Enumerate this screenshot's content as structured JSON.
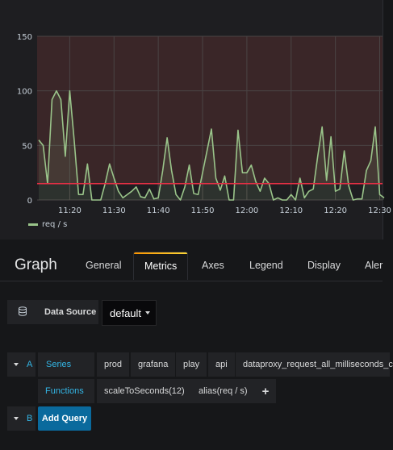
{
  "chart_data": {
    "type": "line",
    "x": [
      "11:13",
      "11:14",
      "11:15",
      "11:16",
      "11:17",
      "11:18",
      "11:19",
      "11:20",
      "11:21",
      "11:22",
      "11:23",
      "11:24",
      "11:25",
      "11:26",
      "11:27",
      "11:28",
      "11:29",
      "11:30",
      "11:31",
      "11:32",
      "11:33",
      "11:34",
      "11:35",
      "11:36",
      "11:37",
      "11:38",
      "11:39",
      "11:40",
      "11:41",
      "11:42",
      "11:43",
      "11:44",
      "11:45",
      "11:46",
      "11:47",
      "11:48",
      "11:49",
      "11:50",
      "11:51",
      "11:52",
      "11:53",
      "11:54",
      "11:55",
      "11:56",
      "11:57",
      "11:58",
      "11:59",
      "12:00",
      "12:01",
      "12:02",
      "12:03",
      "12:04",
      "12:05",
      "12:06",
      "12:07",
      "12:08",
      "12:09",
      "12:10",
      "12:11",
      "12:12",
      "12:13",
      "12:14",
      "12:15",
      "12:16",
      "12:17",
      "12:18",
      "12:19",
      "12:20",
      "12:21",
      "12:22",
      "12:23",
      "12:24",
      "12:25",
      "12:26",
      "12:27",
      "12:28",
      "12:29",
      "12:30",
      "12:31"
    ],
    "values": [
      55,
      50,
      15,
      92,
      100,
      92,
      40,
      100,
      55,
      5,
      5,
      33,
      0,
      0,
      0,
      15,
      33,
      20,
      8,
      2,
      5,
      8,
      12,
      3,
      2,
      10,
      1,
      2,
      27,
      57,
      27,
      5,
      0,
      12,
      32,
      6,
      5,
      25,
      45,
      65,
      20,
      9,
      22,
      0,
      0,
      64,
      25,
      25,
      32,
      17,
      8,
      20,
      15,
      0,
      2,
      0,
      0,
      5,
      0,
      20,
      2,
      8,
      10,
      40,
      67,
      18,
      58,
      8,
      10,
      45,
      13,
      0,
      1,
      1,
      27,
      36,
      67,
      5,
      2
    ],
    "xticks": [
      "11:20",
      "11:30",
      "11:40",
      "11:50",
      "12:00",
      "12:10",
      "12:20",
      "12:30"
    ],
    "yticks": [
      "0",
      "50",
      "100",
      "150"
    ],
    "ylim": [
      0,
      150
    ],
    "threshold": 15,
    "threshold_color": "#e02f44",
    "series_color": "#9ac48a",
    "series": [
      {
        "name": "req / s"
      }
    ],
    "grid": true,
    "legend": "bottom-left"
  },
  "panel": {
    "title": "Graph"
  },
  "tabs": [
    {
      "label": "General"
    },
    {
      "label": "Metrics"
    },
    {
      "label": "Axes"
    },
    {
      "label": "Legend"
    },
    {
      "label": "Display"
    },
    {
      "label": "Aler"
    }
  ],
  "datasource": {
    "label": "Data Source",
    "value": "default",
    "icon": "database-icon"
  },
  "queries": [
    {
      "ref": "A",
      "series_label": "Series",
      "series_parts": [
        "prod",
        "grafana",
        "play",
        "api",
        "dataproxy_request_all_milliseconds_c"
      ],
      "functions_label": "Functions",
      "functions": [
        "scaleToSeconds(12)",
        "alias(req / s)"
      ],
      "add_function": "+"
    },
    {
      "ref": "B",
      "add_query_label": "Add Query"
    }
  ]
}
